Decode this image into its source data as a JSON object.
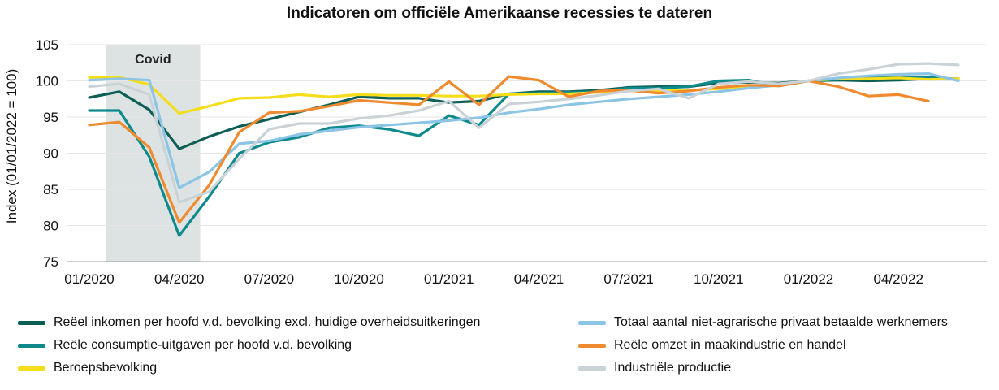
{
  "chart_data": {
    "type": "line",
    "title": "Indicatoren om officiële Amerikaanse recessies te dateren",
    "xlabel": "",
    "ylabel": "Index (01/01/2022 = 100)",
    "ylim": [
      75,
      105
    ],
    "yticks": [
      "75",
      "80",
      "85",
      "90",
      "95",
      "100",
      "105"
    ],
    "x": [
      "2020-01",
      "2020-02",
      "2020-03",
      "2020-04",
      "2020-05",
      "2020-06",
      "2020-07",
      "2020-08",
      "2020-09",
      "2020-10",
      "2020-11",
      "2020-12",
      "2021-01",
      "2021-02",
      "2021-03",
      "2021-04",
      "2021-05",
      "2021-06",
      "2021-07",
      "2021-08",
      "2021-09",
      "2021-10",
      "2021-11",
      "2021-12",
      "2022-01",
      "2022-02",
      "2022-03",
      "2022-04",
      "2022-05",
      "2022-06"
    ],
    "xticks": [
      "01/2020",
      "04/2020",
      "07/2020",
      "10/2020",
      "01/2021",
      "04/2021",
      "07/2021",
      "10/2021",
      "01/2022",
      "04/2022"
    ],
    "shaded_region": {
      "label": "Covid",
      "from": "2020-02",
      "to": "2020-04"
    },
    "grid": true,
    "legend_position": "bottom",
    "series": [
      {
        "name": "Reëel inkomen per hoofd v.d. bevolking excl. huidige overheidsuitkeringen",
        "color": "#0d5f55",
        "values": [
          97.7,
          98.5,
          96.0,
          90.6,
          92.3,
          93.7,
          94.7,
          95.7,
          96.7,
          97.8,
          97.6,
          97.6,
          97.0,
          97.2,
          98.2,
          98.5,
          98.5,
          98.7,
          99.1,
          99.2,
          99.2,
          99.7,
          99.8,
          99.7,
          100.0,
          100.1,
          100.0,
          100.1,
          100.3,
          100.3
        ]
      },
      {
        "name": "Reële consumptie-uitgaven per hoofd v.d. bevolking",
        "color": "#0e8a8d",
        "values": [
          95.9,
          95.9,
          89.5,
          78.6,
          84.0,
          90.0,
          91.5,
          92.2,
          93.5,
          93.8,
          93.3,
          92.4,
          95.2,
          93.9,
          98.2,
          98.3,
          98.4,
          98.5,
          99.0,
          99.0,
          99.2,
          100.0,
          100.1,
          99.3,
          100.0,
          100.2,
          100.5,
          100.6,
          100.5,
          100.2
        ]
      },
      {
        "name": "Beroepsbevolking",
        "color": "#f5dd1a",
        "values": [
          100.5,
          100.5,
          99.5,
          95.5,
          96.5,
          97.6,
          97.7,
          98.1,
          97.8,
          98.1,
          98.0,
          98.0,
          97.9,
          97.9,
          98.1,
          98.2,
          98.2,
          98.4,
          98.6,
          98.6,
          98.7,
          98.9,
          99.2,
          99.4,
          100.0,
          100.3,
          100.3,
          100.4,
          100.2,
          100.3
        ]
      },
      {
        "name": "Totaal aantal niet-agrarische privaat betaalde werknemers",
        "color": "#8cc4e6",
        "values": [
          100.1,
          100.3,
          100.1,
          85.2,
          87.4,
          91.3,
          91.7,
          92.6,
          93.1,
          93.6,
          93.9,
          94.2,
          94.5,
          94.9,
          95.6,
          96.1,
          96.7,
          97.1,
          97.5,
          97.8,
          98.1,
          98.5,
          99.0,
          99.4,
          100.0,
          100.4,
          100.7,
          100.9,
          101.0,
          100.0
        ]
      },
      {
        "name": "Reële omzet in maakindustrie en handel",
        "color": "#ef8a2e",
        "values": [
          93.9,
          94.3,
          90.8,
          80.4,
          85.6,
          92.9,
          95.6,
          95.8,
          96.5,
          97.3,
          97.0,
          96.7,
          99.9,
          96.7,
          100.6,
          100.1,
          97.8,
          98.6,
          98.7,
          98.3,
          98.6,
          99.1,
          99.4,
          99.3,
          100.0,
          99.2,
          97.9,
          98.1,
          97.2,
          null
        ]
      },
      {
        "name": "Industriële productie",
        "color": "#c9d2d6",
        "values": [
          99.2,
          99.6,
          98.1,
          83.2,
          84.7,
          89.2,
          93.3,
          94.1,
          94.1,
          94.8,
          95.2,
          95.9,
          97.2,
          93.5,
          96.8,
          97.1,
          97.5,
          98.0,
          98.6,
          98.9,
          97.6,
          99.6,
          99.9,
          99.6,
          100.0,
          101.0,
          101.6,
          102.3,
          102.4,
          102.2
        ]
      }
    ]
  }
}
